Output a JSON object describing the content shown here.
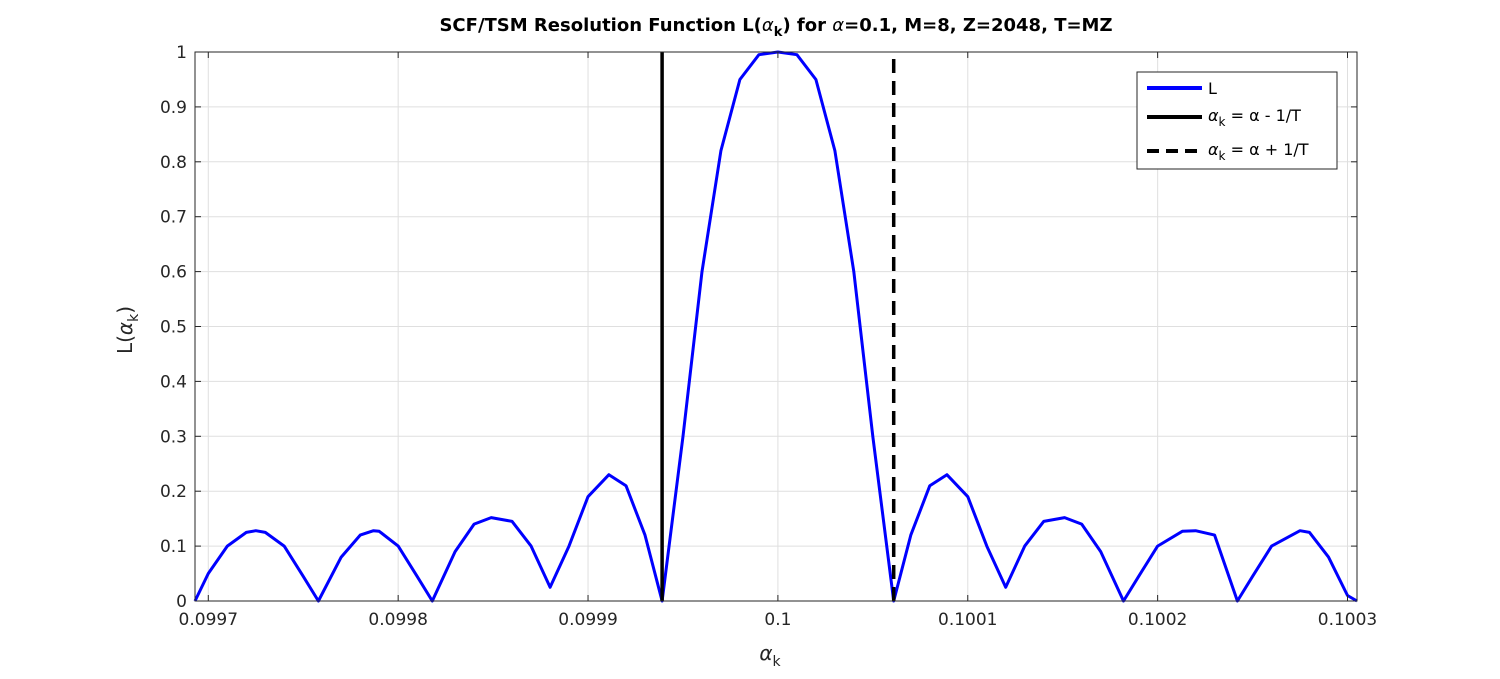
{
  "chart_data": {
    "type": "line",
    "title": {
      "prefix": "SCF/TSM Resolution Function L(",
      "alpha": "α",
      "sub": "k",
      "suffix": ") for ",
      "alpha2": "α",
      "rest": "=0.1, M=8, Z=2048, T=MZ"
    },
    "xlabel": {
      "symbol": "α",
      "sub": "k"
    },
    "ylabel": {
      "prefix": "L(",
      "symbol": "α",
      "sub": "k",
      "suffix": ")"
    },
    "xlim": [
      0.099693,
      0.100305
    ],
    "ylim": [
      0,
      1
    ],
    "x_ticks": [
      0.0997,
      0.0998,
      0.0999,
      0.1,
      0.1001,
      0.1002,
      0.1003
    ],
    "x_tick_labels": [
      "0.0997",
      "0.0998",
      "0.0999",
      "0.1",
      "0.1001",
      "0.1002",
      "0.1003"
    ],
    "y_ticks": [
      0,
      0.1,
      0.2,
      0.3,
      0.4,
      0.5,
      0.6,
      0.7,
      0.8,
      0.9,
      1
    ],
    "y_tick_labels": [
      "0",
      "0.1",
      "0.2",
      "0.3",
      "0.4",
      "0.5",
      "0.6",
      "0.7",
      "0.8",
      "0.9",
      "1"
    ],
    "grid": true,
    "legend_position": "top-right",
    "series": [
      {
        "name": "L",
        "color": "#0000ff",
        "style": "solid",
        "x": [
          0.099693,
          0.0997,
          0.09971,
          0.09972,
          0.099725,
          0.09973,
          0.09974,
          0.09975,
          0.099758,
          0.09977,
          0.09978,
          0.099787,
          0.09979,
          0.0998,
          0.09981,
          0.099818,
          0.09983,
          0.09984,
          0.099849,
          0.09986,
          0.09987,
          0.09988,
          0.09989,
          0.0999,
          0.099911,
          0.09992,
          0.09993,
          0.099939,
          0.09995,
          0.09996,
          0.09997,
          0.09998,
          0.09999,
          0.1,
          0.10001,
          0.10002,
          0.10003,
          0.10004,
          0.10005,
          0.100061,
          0.10007,
          0.10008,
          0.100089,
          0.1001,
          0.10011,
          0.10012,
          0.10013,
          0.10014,
          0.100151,
          0.10016,
          0.10017,
          0.100182,
          0.10019,
          0.1002,
          0.100213,
          0.10022,
          0.10023,
          0.100242,
          0.10025,
          0.10026,
          0.100275,
          0.10028,
          0.10029,
          0.1003,
          0.100305
        ],
        "values": [
          0.0,
          0.05,
          0.1,
          0.125,
          0.128,
          0.125,
          0.1,
          0.045,
          0.0,
          0.08,
          0.12,
          0.128,
          0.127,
          0.1,
          0.045,
          0.0,
          0.09,
          0.14,
          0.152,
          0.145,
          0.1,
          0.025,
          0.1,
          0.19,
          0.23,
          0.21,
          0.12,
          0.0,
          0.3,
          0.6,
          0.82,
          0.95,
          0.995,
          1.0,
          0.995,
          0.95,
          0.82,
          0.6,
          0.3,
          0.0,
          0.12,
          0.21,
          0.23,
          0.19,
          0.1,
          0.025,
          0.1,
          0.145,
          0.152,
          0.14,
          0.09,
          0.0,
          0.045,
          0.1,
          0.127,
          0.128,
          0.12,
          0.0,
          0.045,
          0.1,
          0.128,
          0.125,
          0.08,
          0.01,
          0.0
        ]
      },
      {
        "name": "α_k = α - 1/T",
        "color": "#000000",
        "style": "solid",
        "x": [
          0.099939,
          0.099939
        ],
        "values": [
          0,
          1
        ]
      },
      {
        "name": "α_k = α + 1/T",
        "color": "#000000",
        "style": "dashed",
        "x": [
          0.100061,
          0.100061
        ],
        "values": [
          0,
          1
        ]
      }
    ],
    "legend": [
      {
        "text": "L"
      },
      {
        "symbol": "α",
        "sub": "k",
        "rest": " = α - 1/T"
      },
      {
        "symbol": "α",
        "sub": "k",
        "rest": " = α + 1/T"
      }
    ]
  }
}
